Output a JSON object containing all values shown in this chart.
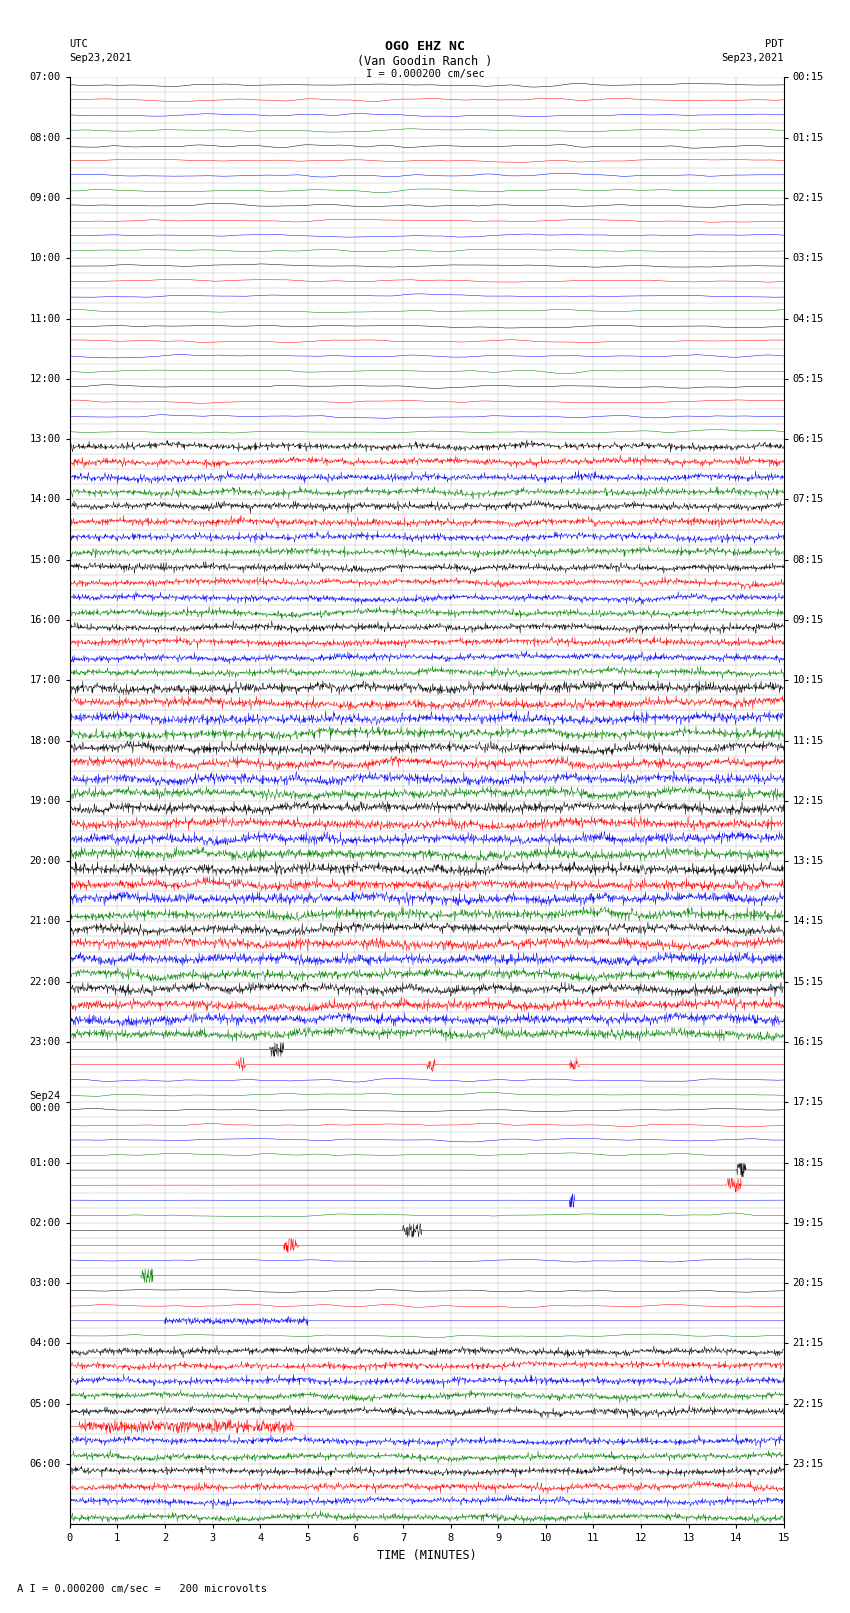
{
  "title_line1": "OGO EHZ NC",
  "title_line2": "(Van Goodin Ranch )",
  "scale_label": "I = 0.000200 cm/sec",
  "footer_label": "A I = 0.000200 cm/sec =   200 microvolts",
  "utc_label": "UTC",
  "utc_date": "Sep23,2021",
  "pdt_label": "PDT",
  "pdt_date": "Sep23,2021",
  "xlabel": "TIME (MINUTES)",
  "bg_color": "#ffffff",
  "trace_colors_cycle": [
    "black",
    "red",
    "blue",
    "green"
  ],
  "num_rows": 96,
  "minutes_per_row": 15,
  "left_tick_hour_labels": [
    "07:00",
    "",
    "",
    "",
    "08:00",
    "",
    "",
    "",
    "09:00",
    "",
    "",
    "",
    "10:00",
    "",
    "",
    "",
    "11:00",
    "",
    "",
    "",
    "12:00",
    "",
    "",
    "",
    "13:00",
    "",
    "",
    "",
    "14:00",
    "",
    "",
    "",
    "15:00",
    "",
    "",
    "",
    "16:00",
    "",
    "",
    "",
    "17:00",
    "",
    "",
    "",
    "18:00",
    "",
    "",
    "",
    "19:00",
    "",
    "",
    "",
    "20:00",
    "",
    "",
    "",
    "21:00",
    "",
    "",
    "",
    "22:00",
    "",
    "",
    "",
    "23:00",
    "",
    "",
    "",
    "Sep24\n00:00",
    "",
    "",
    "",
    "01:00",
    "",
    "",
    "",
    "02:00",
    "",
    "",
    "",
    "03:00",
    "",
    "",
    "",
    "04:00",
    "",
    "",
    "",
    "05:00",
    "",
    "",
    "",
    "06:00",
    "",
    "",
    ""
  ],
  "right_tick_labels": [
    "00:15",
    "",
    "",
    "",
    "01:15",
    "",
    "",
    "",
    "02:15",
    "",
    "",
    "",
    "03:15",
    "",
    "",
    "",
    "04:15",
    "",
    "",
    "",
    "05:15",
    "",
    "",
    "",
    "06:15",
    "",
    "",
    "",
    "07:15",
    "",
    "",
    "",
    "08:15",
    "",
    "",
    "",
    "09:15",
    "",
    "",
    "",
    "10:15",
    "",
    "",
    "",
    "11:15",
    "",
    "",
    "",
    "12:15",
    "",
    "",
    "",
    "13:15",
    "",
    "",
    "",
    "14:15",
    "",
    "",
    "",
    "15:15",
    "",
    "",
    "",
    "16:15",
    "",
    "",
    "",
    "17:15",
    "",
    "",
    "",
    "18:15",
    "",
    "",
    "",
    "19:15",
    "",
    "",
    "",
    "20:15",
    "",
    "",
    "",
    "21:15",
    "",
    "",
    "",
    "22:15",
    "",
    "",
    "",
    "23:15",
    "",
    "",
    ""
  ],
  "noise_levels": [
    0.04,
    0.04,
    0.04,
    0.04,
    0.04,
    0.04,
    0.04,
    0.04,
    0.04,
    0.04,
    0.04,
    0.04,
    0.04,
    0.04,
    0.04,
    0.04,
    0.15,
    0.15,
    0.15,
    0.15,
    0.25,
    0.25,
    0.25,
    0.25,
    0.45,
    0.45,
    0.45,
    0.45,
    0.55,
    0.55,
    0.55,
    0.55,
    0.65,
    0.65,
    0.65,
    0.65,
    0.75,
    0.75,
    0.75,
    0.75,
    0.85,
    0.85,
    0.85,
    0.85,
    0.95,
    0.95,
    0.95,
    0.95,
    1.0,
    1.0,
    1.0,
    1.0,
    1.0,
    1.0,
    1.0,
    1.0,
    1.0,
    1.0,
    1.0,
    1.0,
    0.85,
    0.85,
    0.85,
    0.85,
    0.25,
    0.2,
    0.15,
    0.1,
    0.08,
    0.06,
    0.06,
    0.06,
    0.06,
    0.06,
    0.06,
    0.06,
    0.12,
    0.15,
    0.2,
    0.25,
    0.35,
    0.35,
    0.35,
    0.35,
    0.5,
    0.5,
    0.5,
    0.5,
    0.6,
    0.6,
    0.6,
    0.6,
    0.55,
    0.55,
    0.55,
    0.55
  ]
}
